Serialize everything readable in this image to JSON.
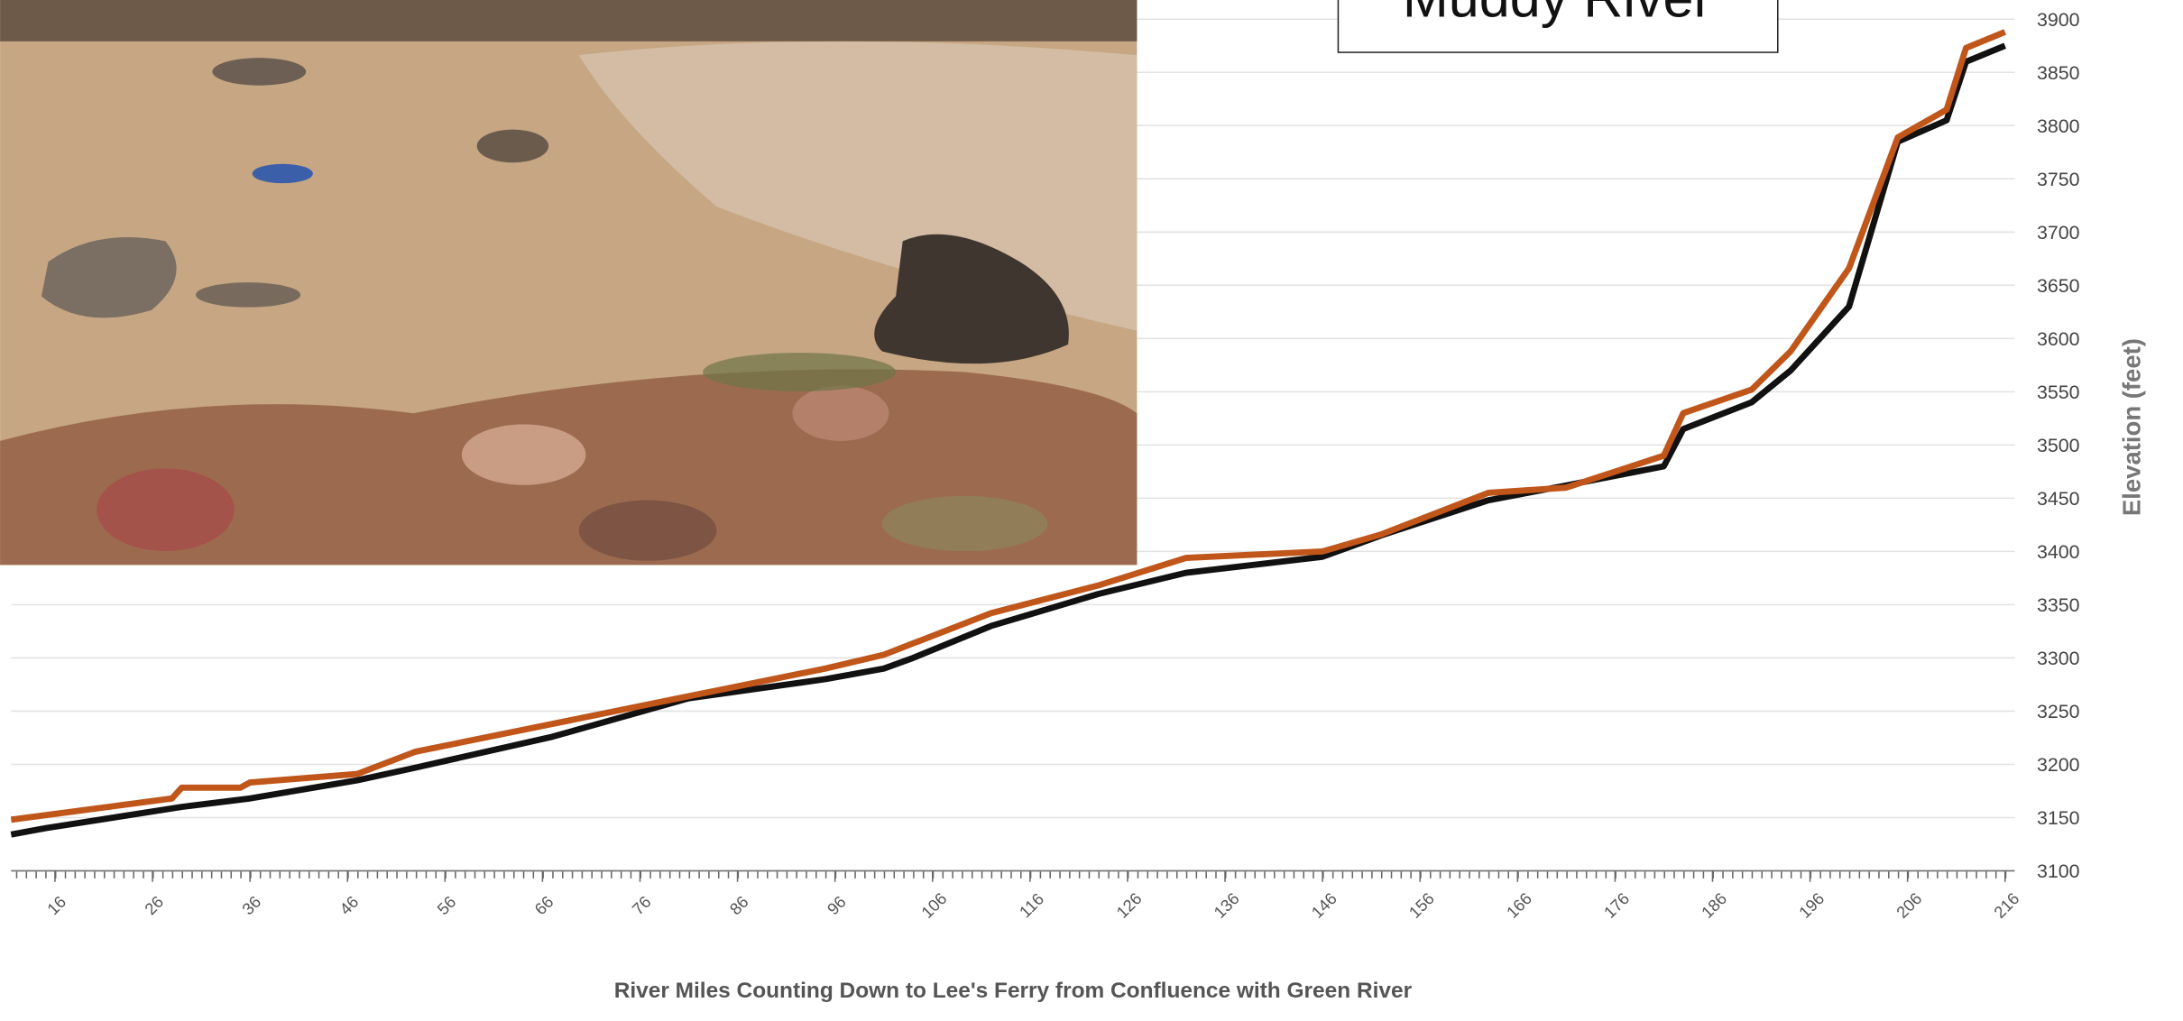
{
  "chart_data": {
    "type": "line",
    "title": "Muddy River",
    "x_label": "River Miles Counting Down to Lee's Ferry from Confluence with Green River",
    "y_label": "Elevation (feet)",
    "xlim": [
      11.5,
      217
    ],
    "xticks": [
      16,
      26,
      36,
      46,
      56,
      66,
      76,
      86,
      96,
      106,
      116,
      126,
      136,
      146,
      156,
      166,
      176,
      186,
      196,
      206,
      216
    ],
    "ylim": [
      3100,
      3918
    ],
    "yticks": [
      3100,
      3150,
      3200,
      3250,
      3300,
      3350,
      3400,
      3450,
      3500,
      3550,
      3600,
      3650,
      3700,
      3750,
      3800,
      3850,
      3900
    ],
    "grid": true,
    "series": [
      {
        "color": "#c0561a",
        "x": [
          11.5,
          28,
          29,
          35,
          36,
          47,
          53,
          67,
          81,
          95,
          101,
          112,
          123,
          132,
          146,
          152,
          163,
          171,
          181,
          183,
          190,
          194,
          200,
          205,
          210,
          212,
          216
        ],
        "values": [
          3148,
          3168,
          3178,
          3178,
          3183,
          3191,
          3212,
          3238,
          3264,
          3290,
          3303,
          3342,
          3368,
          3394,
          3400,
          3416,
          3455,
          3460,
          3490,
          3530,
          3552,
          3588,
          3666,
          3789,
          3815,
          3873,
          3888
        ]
      },
      {
        "color": "#111111",
        "x": [
          11.5,
          15,
          29,
          36,
          47,
          53,
          67,
          81,
          95,
          101,
          104,
          112,
          123,
          132,
          146,
          149,
          152,
          163,
          171,
          181,
          183,
          190,
          194,
          200,
          205,
          210,
          212,
          216
        ],
        "values": [
          3134,
          3140,
          3160,
          3168,
          3185,
          3197,
          3226,
          3262,
          3280,
          3290,
          3300,
          3330,
          3360,
          3380,
          3395,
          3405,
          3415,
          3448,
          3462,
          3480,
          3515,
          3540,
          3570,
          3630,
          3785,
          3805,
          3860,
          3875
        ]
      }
    ]
  }
}
